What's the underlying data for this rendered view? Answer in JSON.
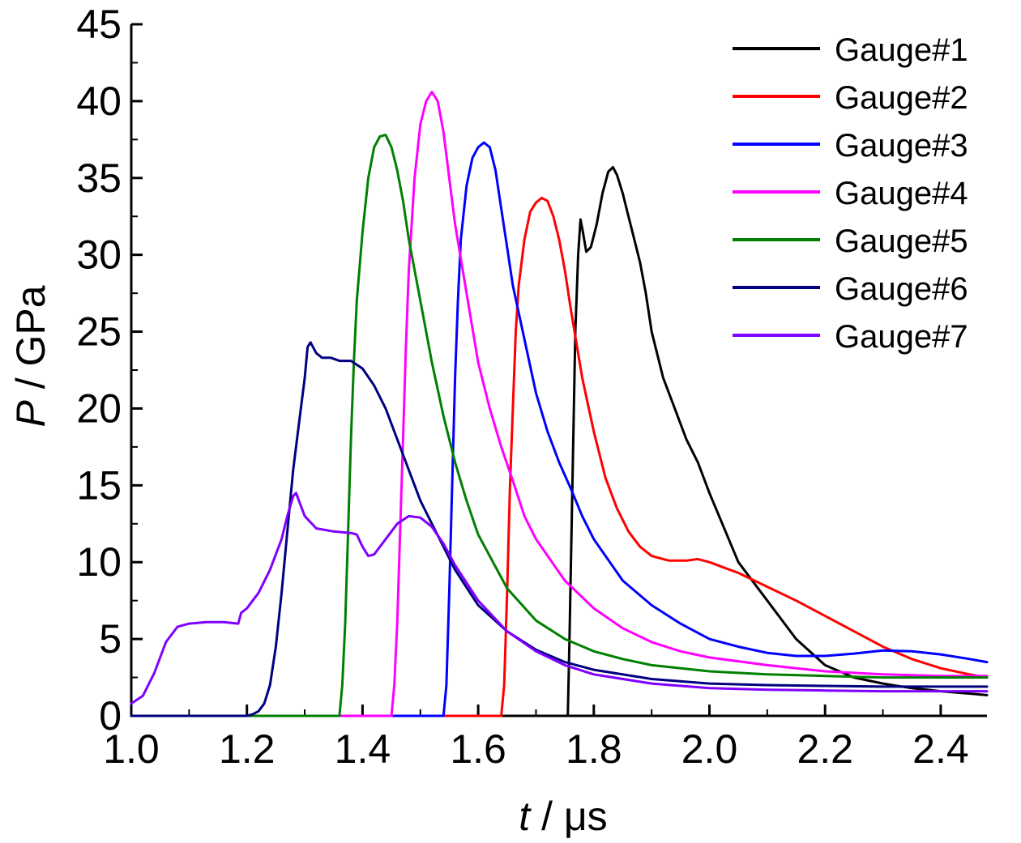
{
  "chart_data": {
    "type": "line",
    "xlabel": {
      "var": "t",
      "unit": " / μs"
    },
    "ylabel": {
      "var": "P",
      "unit": " / GPa"
    },
    "xlim": [
      1.0,
      2.48
    ],
    "ylim": [
      0,
      45
    ],
    "xticks": [
      1.0,
      1.2,
      1.4,
      1.6,
      1.8,
      2.0,
      2.2,
      2.4
    ],
    "xtick_labels": [
      "1.0",
      "1.2",
      "1.4",
      "1.6",
      "1.8",
      "2.0",
      "2.2",
      "2.4"
    ],
    "yticks": [
      0,
      5,
      10,
      15,
      20,
      25,
      30,
      35,
      40,
      45
    ],
    "ytick_labels": [
      "0",
      "5",
      "10",
      "15",
      "20",
      "25",
      "30",
      "35",
      "40",
      "45"
    ],
    "grid": false,
    "legend_position": "top-right",
    "series": [
      {
        "name": "Gauge#1",
        "color": "#000000",
        "points": [
          [
            1.0,
            0
          ],
          [
            1.755,
            0
          ],
          [
            1.758,
            5
          ],
          [
            1.763,
            15
          ],
          [
            1.768,
            25
          ],
          [
            1.773,
            30
          ],
          [
            1.777,
            32.3
          ],
          [
            1.781,
            31.5
          ],
          [
            1.787,
            30.2
          ],
          [
            1.795,
            30.5
          ],
          [
            1.805,
            32
          ],
          [
            1.815,
            34
          ],
          [
            1.825,
            35.4
          ],
          [
            1.833,
            35.7
          ],
          [
            1.84,
            35.2
          ],
          [
            1.85,
            34
          ],
          [
            1.86,
            32.5
          ],
          [
            1.87,
            31
          ],
          [
            1.88,
            29.5
          ],
          [
            1.89,
            27.5
          ],
          [
            1.9,
            25
          ],
          [
            1.92,
            22
          ],
          [
            1.94,
            20
          ],
          [
            1.96,
            18
          ],
          [
            1.98,
            16.5
          ],
          [
            2.0,
            14.5
          ],
          [
            2.05,
            10
          ],
          [
            2.1,
            7.5
          ],
          [
            2.15,
            5
          ],
          [
            2.2,
            3.3
          ],
          [
            2.25,
            2.5
          ],
          [
            2.3,
            2.1
          ],
          [
            2.35,
            1.8
          ],
          [
            2.4,
            1.6
          ],
          [
            2.45,
            1.45
          ],
          [
            2.48,
            1.35
          ]
        ]
      },
      {
        "name": "Gauge#2",
        "color": "#ff0000",
        "points": [
          [
            1.0,
            0
          ],
          [
            1.64,
            0
          ],
          [
            1.645,
            2
          ],
          [
            1.65,
            8
          ],
          [
            1.655,
            15
          ],
          [
            1.66,
            20
          ],
          [
            1.665,
            25
          ],
          [
            1.67,
            28
          ],
          [
            1.68,
            31
          ],
          [
            1.69,
            32.8
          ],
          [
            1.7,
            33.4
          ],
          [
            1.71,
            33.7
          ],
          [
            1.72,
            33.5
          ],
          [
            1.73,
            32.5
          ],
          [
            1.74,
            31
          ],
          [
            1.75,
            29
          ],
          [
            1.76,
            26.5
          ],
          [
            1.78,
            22
          ],
          [
            1.8,
            18.5
          ],
          [
            1.82,
            15.5
          ],
          [
            1.84,
            13.5
          ],
          [
            1.86,
            12
          ],
          [
            1.88,
            11
          ],
          [
            1.9,
            10.4
          ],
          [
            1.93,
            10.1
          ],
          [
            1.96,
            10.1
          ],
          [
            1.98,
            10.2
          ],
          [
            2.0,
            10
          ],
          [
            2.05,
            9.3
          ],
          [
            2.1,
            8.4
          ],
          [
            2.15,
            7.5
          ],
          [
            2.2,
            6.5
          ],
          [
            2.25,
            5.5
          ],
          [
            2.3,
            4.5
          ],
          [
            2.35,
            3.7
          ],
          [
            2.4,
            3.1
          ],
          [
            2.45,
            2.7
          ],
          [
            2.48,
            2.5
          ]
        ]
      },
      {
        "name": "Gauge#3",
        "color": "#0000ff",
        "points": [
          [
            1.0,
            0
          ],
          [
            1.54,
            0
          ],
          [
            1.545,
            2
          ],
          [
            1.55,
            8
          ],
          [
            1.555,
            15
          ],
          [
            1.56,
            22
          ],
          [
            1.565,
            27
          ],
          [
            1.57,
            31
          ],
          [
            1.58,
            34.5
          ],
          [
            1.59,
            36.3
          ],
          [
            1.6,
            37
          ],
          [
            1.61,
            37.3
          ],
          [
            1.62,
            37
          ],
          [
            1.63,
            35.5
          ],
          [
            1.64,
            33
          ],
          [
            1.65,
            30.5
          ],
          [
            1.66,
            28
          ],
          [
            1.68,
            24.5
          ],
          [
            1.7,
            21
          ],
          [
            1.72,
            18.5
          ],
          [
            1.74,
            16.5
          ],
          [
            1.76,
            14.8
          ],
          [
            1.78,
            13
          ],
          [
            1.8,
            11.5
          ],
          [
            1.85,
            8.8
          ],
          [
            1.9,
            7.2
          ],
          [
            1.95,
            6
          ],
          [
            2.0,
            5
          ],
          [
            2.05,
            4.5
          ],
          [
            2.1,
            4.1
          ],
          [
            2.15,
            3.9
          ],
          [
            2.2,
            3.9
          ],
          [
            2.25,
            4.05
          ],
          [
            2.3,
            4.25
          ],
          [
            2.35,
            4.2
          ],
          [
            2.4,
            4
          ],
          [
            2.45,
            3.7
          ],
          [
            2.48,
            3.5
          ]
        ]
      },
      {
        "name": "Gauge#4",
        "color": "#ff00ff",
        "points": [
          [
            1.0,
            0
          ],
          [
            1.45,
            0
          ],
          [
            1.455,
            2
          ],
          [
            1.46,
            6
          ],
          [
            1.465,
            12
          ],
          [
            1.47,
            18
          ],
          [
            1.475,
            24
          ],
          [
            1.48,
            29
          ],
          [
            1.49,
            35
          ],
          [
            1.5,
            38.5
          ],
          [
            1.51,
            40
          ],
          [
            1.52,
            40.6
          ],
          [
            1.53,
            40
          ],
          [
            1.54,
            38
          ],
          [
            1.55,
            35
          ],
          [
            1.56,
            32
          ],
          [
            1.58,
            27.5
          ],
          [
            1.6,
            23
          ],
          [
            1.62,
            20
          ],
          [
            1.64,
            17.5
          ],
          [
            1.66,
            15.3
          ],
          [
            1.68,
            13
          ],
          [
            1.7,
            11.5
          ],
          [
            1.75,
            8.8
          ],
          [
            1.8,
            7
          ],
          [
            1.85,
            5.7
          ],
          [
            1.9,
            4.8
          ],
          [
            1.95,
            4.2
          ],
          [
            2.0,
            3.8
          ],
          [
            2.1,
            3.3
          ],
          [
            2.2,
            2.9
          ],
          [
            2.3,
            2.7
          ],
          [
            2.4,
            2.6
          ],
          [
            2.48,
            2.6
          ]
        ]
      },
      {
        "name": "Gauge#5",
        "color": "#008000",
        "points": [
          [
            1.0,
            0
          ],
          [
            1.36,
            0
          ],
          [
            1.365,
            2
          ],
          [
            1.37,
            6
          ],
          [
            1.375,
            12
          ],
          [
            1.38,
            18
          ],
          [
            1.385,
            23
          ],
          [
            1.39,
            27
          ],
          [
            1.4,
            31.5
          ],
          [
            1.41,
            35
          ],
          [
            1.42,
            37
          ],
          [
            1.43,
            37.7
          ],
          [
            1.44,
            37.8
          ],
          [
            1.45,
            37
          ],
          [
            1.46,
            35.5
          ],
          [
            1.47,
            33.5
          ],
          [
            1.48,
            31
          ],
          [
            1.5,
            27
          ],
          [
            1.52,
            23
          ],
          [
            1.54,
            19.5
          ],
          [
            1.56,
            16.5
          ],
          [
            1.58,
            14
          ],
          [
            1.6,
            11.8
          ],
          [
            1.65,
            8.3
          ],
          [
            1.7,
            6.2
          ],
          [
            1.75,
            5
          ],
          [
            1.8,
            4.2
          ],
          [
            1.85,
            3.7
          ],
          [
            1.9,
            3.3
          ],
          [
            2.0,
            2.9
          ],
          [
            2.1,
            2.7
          ],
          [
            2.2,
            2.6
          ],
          [
            2.3,
            2.5
          ],
          [
            2.48,
            2.5
          ]
        ]
      },
      {
        "name": "Gauge#6",
        "color": "#000080",
        "points": [
          [
            1.0,
            0
          ],
          [
            1.2,
            0
          ],
          [
            1.21,
            0.1
          ],
          [
            1.22,
            0.3
          ],
          [
            1.23,
            0.8
          ],
          [
            1.24,
            2
          ],
          [
            1.25,
            4.5
          ],
          [
            1.26,
            8
          ],
          [
            1.27,
            12
          ],
          [
            1.28,
            16
          ],
          [
            1.29,
            19
          ],
          [
            1.3,
            22
          ],
          [
            1.305,
            24
          ],
          [
            1.31,
            24.3
          ],
          [
            1.32,
            23.6
          ],
          [
            1.33,
            23.3
          ],
          [
            1.345,
            23.3
          ],
          [
            1.36,
            23.1
          ],
          [
            1.38,
            23.1
          ],
          [
            1.4,
            22.6
          ],
          [
            1.42,
            21.5
          ],
          [
            1.44,
            20
          ],
          [
            1.46,
            18
          ],
          [
            1.48,
            16
          ],
          [
            1.5,
            14
          ],
          [
            1.52,
            12.5
          ],
          [
            1.54,
            11
          ],
          [
            1.56,
            9.5
          ],
          [
            1.6,
            7.2
          ],
          [
            1.65,
            5.5
          ],
          [
            1.7,
            4.3
          ],
          [
            1.75,
            3.5
          ],
          [
            1.8,
            3
          ],
          [
            1.9,
            2.4
          ],
          [
            2.0,
            2.1
          ],
          [
            2.1,
            2
          ],
          [
            2.2,
            1.95
          ],
          [
            2.3,
            1.9
          ],
          [
            2.48,
            1.9
          ]
        ]
      },
      {
        "name": "Gauge#7",
        "color": "#8000ff",
        "points": [
          [
            1.0,
            0.8
          ],
          [
            1.02,
            1.3
          ],
          [
            1.04,
            2.8
          ],
          [
            1.06,
            4.8
          ],
          [
            1.08,
            5.8
          ],
          [
            1.1,
            6
          ],
          [
            1.13,
            6.1
          ],
          [
            1.16,
            6.1
          ],
          [
            1.185,
            6
          ],
          [
            1.19,
            6.7
          ],
          [
            1.2,
            7
          ],
          [
            1.22,
            8
          ],
          [
            1.24,
            9.5
          ],
          [
            1.26,
            11.5
          ],
          [
            1.27,
            13
          ],
          [
            1.28,
            14.3
          ],
          [
            1.285,
            14.5
          ],
          [
            1.29,
            14
          ],
          [
            1.3,
            13
          ],
          [
            1.32,
            12.2
          ],
          [
            1.35,
            12
          ],
          [
            1.38,
            11.9
          ],
          [
            1.39,
            11.8
          ],
          [
            1.4,
            11
          ],
          [
            1.41,
            10.4
          ],
          [
            1.42,
            10.5
          ],
          [
            1.44,
            11.5
          ],
          [
            1.46,
            12.5
          ],
          [
            1.48,
            13
          ],
          [
            1.5,
            12.9
          ],
          [
            1.52,
            12.3
          ],
          [
            1.54,
            11.2
          ],
          [
            1.56,
            9.8
          ],
          [
            1.6,
            7.5
          ],
          [
            1.65,
            5.5
          ],
          [
            1.7,
            4.2
          ],
          [
            1.75,
            3.3
          ],
          [
            1.8,
            2.7
          ],
          [
            1.9,
            2.1
          ],
          [
            2.0,
            1.8
          ],
          [
            2.1,
            1.7
          ],
          [
            2.2,
            1.65
          ],
          [
            2.3,
            1.6
          ],
          [
            2.48,
            1.6
          ]
        ]
      }
    ]
  }
}
